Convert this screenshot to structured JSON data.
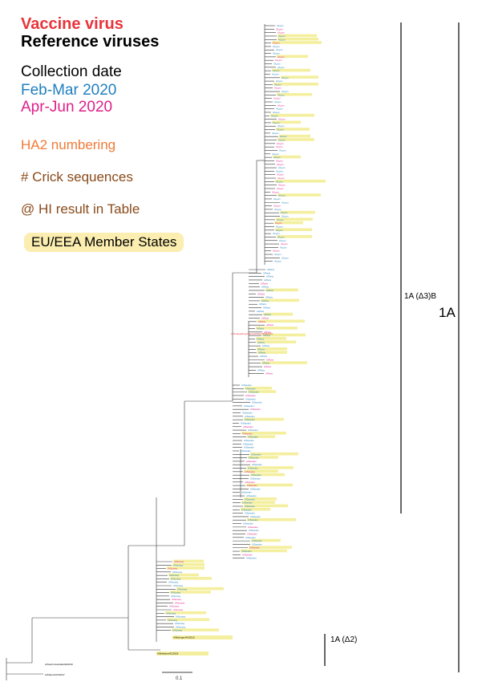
{
  "legend": {
    "vaccine": "Vaccine virus",
    "reference": "Reference viruses",
    "collection": "Collection date",
    "feb_mar": "Feb-Mar 2020",
    "apr_jun": "Apr-Jun 2020",
    "ha2": "HA2 numbering",
    "crick": "# Crick sequences",
    "hi": "@ HI result in Table",
    "eu": "EU/EEA Member States"
  },
  "clades": {
    "big": "1A",
    "sub": "1A (Δ3)B",
    "d2": "1A (Δ2)"
  },
  "scale": "0.1",
  "colors": {
    "vaccine": "#e8343a",
    "reference": "#000000",
    "feb_mar": "#1f7fbf",
    "apr_jun": "#e0208a",
    "ha2": "#f07a36",
    "crick": "#8a4a1a",
    "hi": "#8a4a1a",
    "eu_bg": "#fbeeb0",
    "highlight": "#f4ef9e",
    "branch": "#333333",
    "bracket": "#000000"
  },
  "leaves": {
    "feb": "Feb-Mar 2020",
    "apr": "Apr-Jun 2020"
  }
}
